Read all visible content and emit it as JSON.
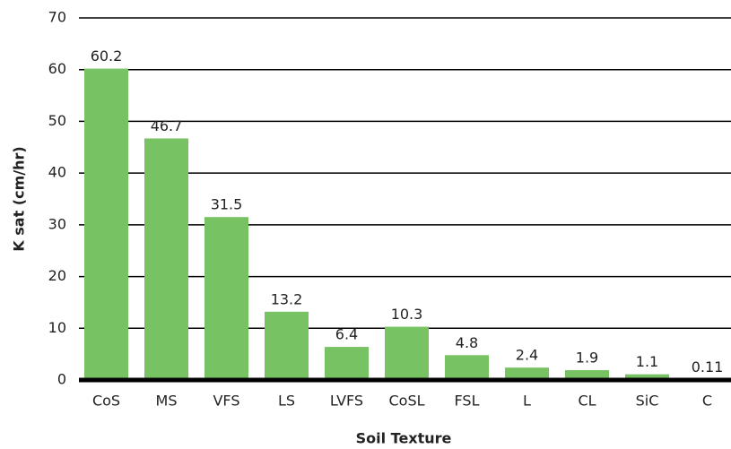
{
  "chart_data": {
    "type": "bar",
    "x_label": "Soil Texture",
    "y_label": "K sat (cm/hr)",
    "categories": [
      "CoS",
      "MS",
      "VFS",
      "LS",
      "LVFS",
      "CoSL",
      "FSL",
      "L",
      "CL",
      "SiC",
      "C"
    ],
    "values": [
      60.2,
      46.7,
      31.5,
      13.2,
      6.4,
      10.3,
      4.8,
      2.4,
      1.9,
      1.1,
      0.11
    ],
    "color": "#77c263",
    "ylim": [
      0,
      70
    ],
    "yticks": [
      0,
      10,
      20,
      30,
      40,
      50,
      60,
      70
    ],
    "grid": true
  }
}
